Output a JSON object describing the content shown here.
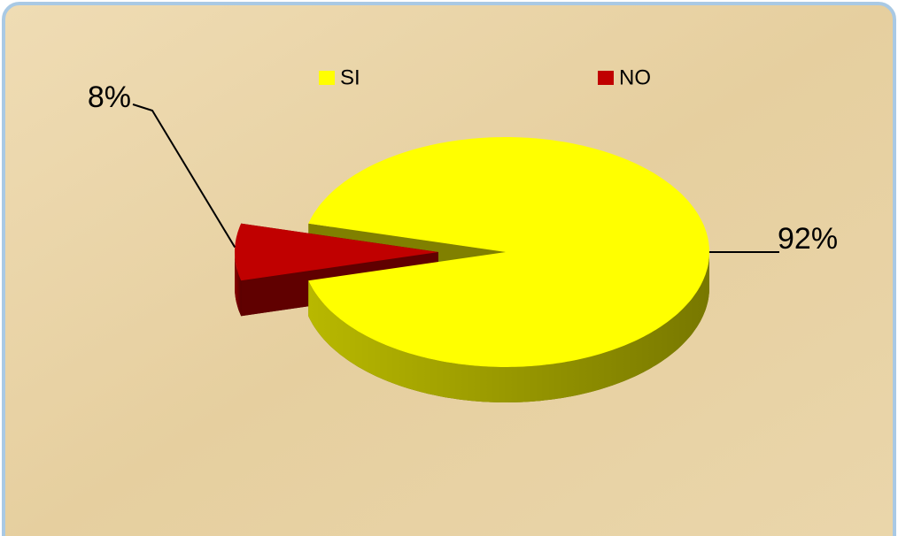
{
  "chart_data": {
    "type": "pie",
    "categories": [
      "SI",
      "NO"
    ],
    "values": [
      92,
      8
    ],
    "value_labels": [
      "92%",
      "8%"
    ],
    "colors": [
      "#ffff00",
      "#c00000"
    ],
    "legend": "top"
  }
}
